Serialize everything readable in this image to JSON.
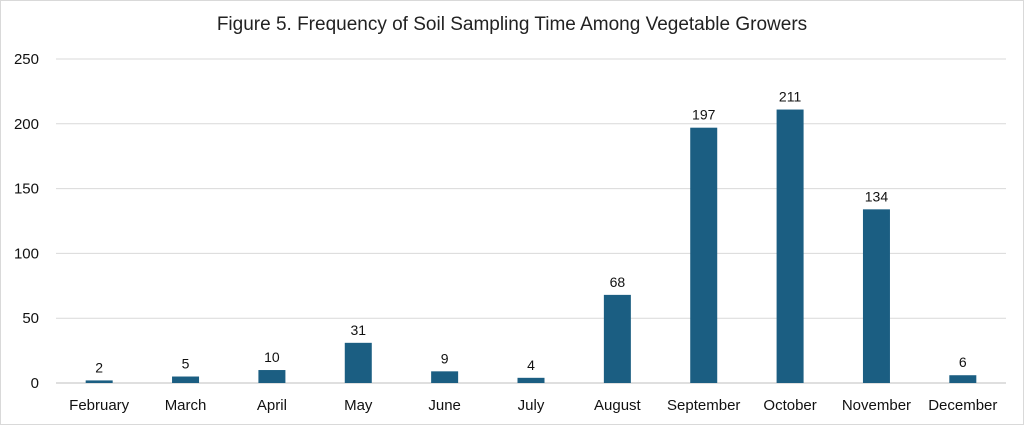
{
  "chart_data": {
    "type": "bar",
    "title": "Figure 5. Frequency of Soil Sampling Time Among Vegetable Growers",
    "xlabel": "",
    "ylabel": "",
    "categories": [
      "February",
      "March",
      "April",
      "May",
      "June",
      "July",
      "August",
      "September",
      "October",
      "November",
      "December"
    ],
    "values": [
      2,
      5,
      10,
      31,
      9,
      4,
      68,
      197,
      211,
      134,
      6
    ],
    "ylim": [
      0,
      250
    ],
    "yticks": [
      0,
      50,
      100,
      150,
      200,
      250
    ],
    "grid": true,
    "legend": "none",
    "data_labels": true,
    "bar_color": "#1b5e82",
    "gridline_color": "#d9d9d9"
  }
}
